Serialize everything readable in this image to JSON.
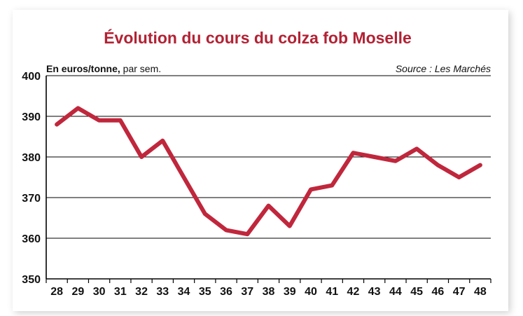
{
  "chart_data": {
    "type": "line",
    "title": "Évolution du cours du colza fob Moselle",
    "unit_label_bold": "En euros/tonne,",
    "unit_label_rest": " par sem.",
    "source": "Source : Les Marchés",
    "categories": [
      "28",
      "29",
      "30",
      "31",
      "32",
      "33",
      "34",
      "35",
      "36",
      "37",
      "38",
      "39",
      "40",
      "41",
      "42",
      "43",
      "44",
      "45",
      "46",
      "47",
      "48"
    ],
    "series": [
      {
        "values": [
          388,
          392,
          389,
          389,
          380,
          384,
          375,
          366,
          362,
          361,
          368,
          363,
          372,
          373,
          381,
          380,
          379,
          382,
          378,
          375,
          378
        ]
      }
    ],
    "ylim": [
      350,
      400
    ],
    "yticks": [
      350,
      360,
      370,
      380,
      390,
      400
    ],
    "grid": true,
    "legend": "none",
    "colors": {
      "line": "#c0273c",
      "title": "#b22234",
      "grid": "#000000"
    }
  }
}
